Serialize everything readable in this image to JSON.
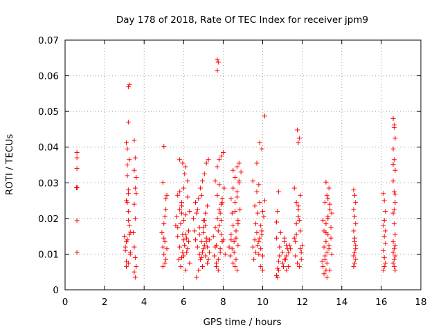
{
  "chart_data": {
    "type": "scatter",
    "title": "Day 178 of 2018, Rate Of TEC Index for receiver jpm9",
    "xlabel": "GPS time / hours",
    "ylabel": "ROTI / TECUs",
    "xlim": [
      0,
      18
    ],
    "ylim": [
      0,
      0.07
    ],
    "xticks": [
      0,
      2,
      4,
      6,
      8,
      10,
      12,
      14,
      16,
      18
    ],
    "yticks": [
      0,
      0.01,
      0.02,
      0.03,
      0.04,
      0.05,
      0.06,
      0.07
    ],
    "xtick_labels": [
      "0",
      "2",
      "4",
      "6",
      "8",
      "10",
      "12",
      "14",
      "16",
      "18"
    ],
    "ytick_labels": [
      "0",
      "0.01",
      "0.02",
      "0.03",
      "0.04",
      "0.05",
      "0.06",
      "0.07"
    ],
    "grid": true,
    "marker": "+",
    "color": "#ff0000",
    "series": [
      {
        "name": "ROTI",
        "x": [
          0.6,
          0.6,
          0.6,
          0.6,
          0.6,
          0.6,
          0.62,
          0.58,
          3.0,
          3.05,
          3.1,
          3.15,
          3.2,
          3.25,
          3.3,
          3.1,
          3.15,
          3.2,
          3.25,
          3.1,
          3.2,
          3.25,
          3.15,
          3.2,
          3.3,
          3.05,
          3.1,
          3.2,
          3.15,
          3.25,
          3.2,
          3.1,
          3.3,
          3.2,
          3.15,
          3.5,
          3.55,
          3.6,
          3.5,
          3.55,
          3.6,
          3.5,
          3.55,
          3.45,
          3.5,
          3.55,
          3.6,
          3.5,
          3.55,
          4.95,
          5.0,
          5.05,
          5.1,
          5.15,
          4.9,
          5.0,
          5.1,
          5.05,
          4.95,
          5.0,
          5.1,
          5.15,
          5.05,
          5.0,
          4.95,
          5.6,
          5.7,
          5.8,
          5.9,
          6.0,
          6.1,
          6.2,
          6.3,
          5.7,
          5.8,
          5.9,
          6.0,
          6.1,
          6.2,
          5.75,
          5.85,
          5.95,
          6.05,
          6.15,
          6.25,
          5.65,
          5.9,
          6.0,
          6.1,
          5.8,
          5.95,
          6.05,
          6.2,
          5.85,
          6.0,
          6.1,
          6.3,
          6.25,
          5.7,
          5.95,
          6.05,
          6.15,
          5.8,
          5.9,
          6.5,
          6.6,
          6.7,
          6.8,
          6.9,
          7.0,
          7.1,
          7.2,
          7.3,
          6.55,
          6.65,
          6.75,
          6.85,
          6.95,
          7.05,
          7.15,
          7.25,
          6.6,
          6.7,
          6.8,
          6.9,
          7.0,
          7.1,
          7.2,
          6.75,
          6.85,
          6.95,
          7.05,
          7.15,
          7.0,
          7.1,
          7.2,
          6.9,
          7.05,
          6.8,
          7.3,
          7.25,
          6.65,
          6.95,
          7.15,
          7.0,
          7.5,
          7.6,
          7.7,
          7.8,
          7.9,
          8.0,
          8.1,
          7.55,
          7.65,
          7.75,
          7.85,
          7.95,
          8.05,
          7.6,
          7.7,
          7.8,
          7.9,
          8.0,
          7.65,
          7.75,
          7.85,
          7.95,
          7.7,
          7.8,
          7.9,
          7.7,
          7.75,
          7.7,
          7.8,
          7.6,
          7.9,
          7.85,
          7.75,
          7.65,
          7.95,
          8.3,
          8.4,
          8.5,
          8.6,
          8.7,
          8.8,
          8.9,
          8.35,
          8.45,
          8.55,
          8.65,
          8.75,
          8.85,
          8.4,
          8.5,
          8.6,
          8.7,
          8.8,
          8.5,
          8.6,
          8.7,
          8.55,
          8.65,
          8.75,
          8.45,
          8.6,
          8.7,
          8.8,
          8.5,
          8.65,
          8.75,
          8.4,
          9.5,
          9.6,
          9.7,
          9.8,
          9.9,
          10.0,
          10.1,
          9.55,
          9.65,
          9.75,
          9.85,
          9.95,
          10.05,
          9.6,
          9.7,
          9.8,
          9.9,
          10.0,
          9.65,
          9.75,
          9.85,
          9.95,
          9.8,
          9.9,
          10.0,
          9.85,
          9.95,
          9.7,
          9.5,
          10.1,
          10.7,
          10.75,
          10.8,
          10.85,
          10.9,
          10.7,
          10.75,
          10.8,
          10.85,
          10.75,
          10.8,
          10.7,
          11.0,
          11.1,
          11.2,
          11.3,
          11.4,
          11.0,
          11.1,
          11.2,
          11.3,
          11.05,
          11.15,
          11.25,
          11.35,
          11.1,
          11.2,
          11.6,
          11.7,
          11.8,
          11.9,
          12.0,
          11.65,
          11.75,
          11.85,
          11.95,
          11.6,
          11.7,
          11.8,
          11.9,
          11.75,
          11.85,
          11.8,
          11.8,
          11.7,
          11.9,
          11.65,
          11.95,
          11.85,
          13.0,
          13.1,
          13.2,
          13.3,
          13.4,
          13.5,
          13.05,
          13.15,
          13.25,
          13.35,
          13.45,
          13.1,
          13.2,
          13.3,
          13.4,
          13.15,
          13.25,
          13.35,
          13.2,
          13.3,
          13.1,
          13.4,
          13.25,
          13.15,
          13.35,
          13.2,
          13.3,
          13.45,
          13.05,
          13.5,
          13.25,
          13.2,
          14.6,
          14.65,
          14.7,
          14.6,
          14.65,
          14.7,
          14.6,
          14.65,
          14.7,
          14.65,
          14.6,
          14.7,
          14.65,
          14.6,
          14.7,
          14.65,
          16.1,
          16.15,
          16.2,
          16.1,
          16.15,
          16.2,
          16.1,
          16.15,
          16.2,
          16.15,
          16.1,
          16.2,
          16.15,
          16.6,
          16.65,
          16.7,
          16.6,
          16.65,
          16.7,
          16.6,
          16.65,
          16.7,
          16.6,
          16.65,
          16.7,
          16.6,
          16.65,
          16.7,
          16.6,
          16.65,
          16.7,
          16.65,
          16.6,
          16.7,
          16.65,
          16.6,
          16.7,
          16.65
        ],
        "y": [
          0.0385,
          0.037,
          0.034,
          0.0287,
          0.0194,
          0.0105,
          0.0287,
          0.0286,
          0.015,
          0.012,
          0.008,
          0.014,
          0.022,
          0.018,
          0.01,
          0.025,
          0.032,
          0.028,
          0.0575,
          0.0412,
          0.047,
          0.0365,
          0.035,
          0.0569,
          0.0162,
          0.011,
          0.0135,
          0.0195,
          0.0245,
          0.0155,
          0.0075,
          0.0065,
          0.0105,
          0.027,
          0.0395,
          0.0419,
          0.037,
          0.0315,
          0.0335,
          0.0285,
          0.027,
          0.024,
          0.02,
          0.016,
          0.012,
          0.009,
          0.0065,
          0.005,
          0.0035,
          0.012,
          0.0145,
          0.0205,
          0.0255,
          0.0265,
          0.016,
          0.01,
          0.0085,
          0.0075,
          0.0065,
          0.0185,
          0.0225,
          0.0115,
          0.0135,
          0.0402,
          0.0301,
          0.018,
          0.015,
          0.012,
          0.009,
          0.014,
          0.021,
          0.026,
          0.022,
          0.0265,
          0.0275,
          0.0245,
          0.0195,
          0.0155,
          0.0115,
          0.0085,
          0.0065,
          0.0105,
          0.0125,
          0.0145,
          0.0165,
          0.0205,
          0.0235,
          0.0285,
          0.0345,
          0.0365,
          0.0355,
          0.0325,
          0.0305,
          0.0185,
          0.0095,
          0.0055,
          0.0075,
          0.0135,
          0.0175,
          0.0155,
          0.0125,
          0.0105,
          0.0225,
          0.0215,
          0.02,
          0.014,
          0.012,
          0.01,
          0.009,
          0.016,
          0.018,
          0.012,
          0.014,
          0.0165,
          0.0215,
          0.0255,
          0.0285,
          0.0305,
          0.0325,
          0.0355,
          0.0365,
          0.0245,
          0.0225,
          0.0175,
          0.0135,
          0.0115,
          0.0095,
          0.0075,
          0.0055,
          0.0085,
          0.0105,
          0.0125,
          0.0145,
          0.0195,
          0.0215,
          0.0235,
          0.0265,
          0.0195,
          0.0155,
          0.0105,
          0.0085,
          0.0035,
          0.0065,
          0.0135,
          0.0175,
          0.015,
          0.012,
          0.02,
          0.018,
          0.024,
          0.014,
          0.01,
          0.0095,
          0.0125,
          0.0165,
          0.0215,
          0.0255,
          0.0285,
          0.0305,
          0.0345,
          0.0365,
          0.0375,
          0.0385,
          0.0075,
          0.0055,
          0.0105,
          0.0135,
          0.0265,
          0.0225,
          0.0195,
          0.0645,
          0.0638,
          0.0615,
          0.0295,
          0.0175,
          0.0155,
          0.0115,
          0.0085,
          0.0065,
          0.0245,
          0.012,
          0.014,
          0.018,
          0.022,
          0.026,
          0.03,
          0.033,
          0.0095,
          0.0115,
          0.0135,
          0.0165,
          0.0195,
          0.0225,
          0.0255,
          0.0285,
          0.0315,
          0.0345,
          0.0355,
          0.0075,
          0.0065,
          0.0055,
          0.0105,
          0.0145,
          0.0185,
          0.0215,
          0.0245,
          0.0275,
          0.0305,
          0.0335,
          0.0085,
          0.0125,
          0.0155,
          0.012,
          0.014,
          0.016,
          0.01,
          0.018,
          0.022,
          0.025,
          0.0085,
          0.0105,
          0.0125,
          0.0145,
          0.0165,
          0.0205,
          0.0235,
          0.0275,
          0.0295,
          0.0065,
          0.0055,
          0.0185,
          0.0215,
          0.0245,
          0.0155,
          0.0135,
          0.0115,
          0.0095,
          0.0412,
          0.0395,
          0.0355,
          0.0305,
          0.0487,
          0.004,
          0.006,
          0.008,
          0.012,
          0.016,
          0.019,
          0.022,
          0.0275,
          0.0095,
          0.0035,
          0.0055,
          0.0145,
          0.0105,
          0.0085,
          0.0125,
          0.0065,
          0.0115,
          0.0075,
          0.0135,
          0.0095,
          0.0105,
          0.0065,
          0.0085,
          0.0115,
          0.0125,
          0.0145,
          0.0055,
          0.0285,
          0.0245,
          0.0205,
          0.0165,
          0.0125,
          0.0095,
          0.0075,
          0.0065,
          0.0105,
          0.0145,
          0.0185,
          0.0225,
          0.0265,
          0.0448,
          0.0425,
          0.0412,
          0.0235,
          0.0155,
          0.0115,
          0.0135,
          0.0085,
          0.0195,
          0.008,
          0.012,
          0.016,
          0.02,
          0.024,
          0.01,
          0.0065,
          0.0085,
          0.0105,
          0.0125,
          0.0145,
          0.0165,
          0.0185,
          0.0205,
          0.0225,
          0.0245,
          0.0265,
          0.0285,
          0.0302,
          0.0255,
          0.0045,
          0.0055,
          0.0075,
          0.0095,
          0.0115,
          0.0135,
          0.0155,
          0.0175,
          0.0195,
          0.0215,
          0.0035,
          0.0055,
          0.028,
          0.0265,
          0.0245,
          0.0225,
          0.0205,
          0.0185,
          0.0165,
          0.0145,
          0.0125,
          0.0105,
          0.0095,
          0.0085,
          0.0075,
          0.0065,
          0.0115,
          0.0135,
          0.027,
          0.025,
          0.022,
          0.018,
          0.015,
          0.013,
          0.011,
          0.009,
          0.0075,
          0.0065,
          0.0055,
          0.0165,
          0.0195,
          0.048,
          0.0455,
          0.0425,
          0.0395,
          0.0365,
          0.0335,
          0.0305,
          0.0275,
          0.0245,
          0.0215,
          0.0185,
          0.0155,
          0.0135,
          0.0115,
          0.0095,
          0.0075,
          0.0065,
          0.0055,
          0.0462,
          0.0352,
          0.0268,
          0.0225,
          0.0105,
          0.0125,
          0.0085
        ]
      }
    ]
  }
}
